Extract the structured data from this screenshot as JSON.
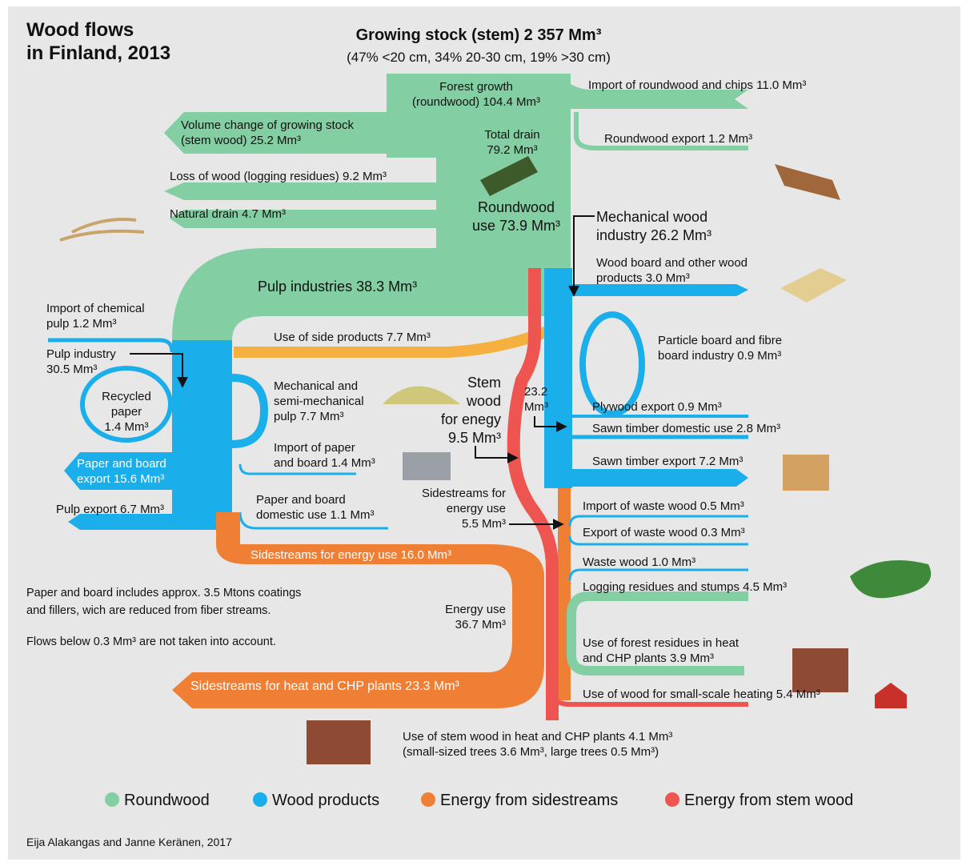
{
  "title": [
    "Wood flows",
    "in Finland, 2013"
  ],
  "header": [
    "Growing stock (stem) 2 357 Mm³",
    "(47% <20 cm, 34% 20-30 cm, 19% >30 cm)"
  ],
  "labels": [
    [
      "Forest growth",
      "(roundwood) 104.4 Mm³"
    ],
    [
      "Total drain",
      "79.2 Mm³"
    ],
    [
      "Roundwood",
      "use 73.9 Mm³"
    ],
    [
      "Volume change of growing stock",
      "(stem wood) 25.2 Mm³"
    ],
    [
      "Loss of wood (logging residues) 9.2 Mm³"
    ],
    [
      "Natural drain 4.7 Mm³"
    ],
    [
      "Import of roundwood and chips 11.0 Mm³"
    ],
    [
      "Roundwood export 1.2 Mm³"
    ],
    [
      "Mechanical wood",
      "industry 26.2 Mm³"
    ],
    [
      "Wood board and other wood",
      "products 3.0 Mm³"
    ],
    [
      "Pulp industries 38.3 Mm³"
    ],
    [
      "Import of chemical",
      "pulp 1.2 Mm³"
    ],
    [
      "Pulp industry",
      "30.5 Mm³"
    ],
    [
      "Recycled",
      "paper",
      "1.4 Mm³"
    ],
    [
      "Paper and board",
      "export 15.6 Mm³"
    ],
    [
      "Pulp export 6.7 Mm³"
    ],
    [
      "Use of side products 7.7 Mm³"
    ],
    [
      "Mechanical and",
      "semi-mechanical",
      "pulp 7.7 Mm³"
    ],
    [
      "Import of paper",
      "and board 1.4 Mm³"
    ],
    [
      "Paper and board",
      "domestic use 1.1 Mm³"
    ],
    [
      "Stem",
      "wood",
      "for enegy",
      "9.5 Mm³"
    ],
    [
      "23.2",
      "Mm³"
    ],
    [
      "Particle board and fibre",
      "board industry 0.9 Mm³"
    ],
    [
      "Plywood export 0.9 Mm³"
    ],
    [
      "Sawn timber domestic use 2.8 Mm³"
    ],
    [
      "Sawn timber export 7.2 Mm³"
    ],
    [
      "Sidestreams for",
      "energy use",
      "5.5 Mm³"
    ],
    [
      "Import of waste wood 0.5 Mm³"
    ],
    [
      "Export of waste wood 0.3 Mm³"
    ],
    [
      "Waste wood 1.0 Mm³"
    ],
    [
      "Logging residues and stumps 4.5 Mm³"
    ],
    [
      "Sidestreams for energy use 16.0 Mm³"
    ],
    [
      "Energy use",
      "36.7 Mm³"
    ],
    [
      "Use of forest residues in heat",
      "and CHP plants 3.9 Mm³"
    ],
    [
      "Sidestreams for heat and CHP plants 23.3 Mm³"
    ],
    [
      "Use of wood for small-scale heating 5.4 Mm³"
    ],
    [
      "Use of stem wood in heat and CHP plants 4.1 Mm³",
      "(small-sized trees 3.6 Mm³, large trees 0.5 Mm³)"
    ]
  ],
  "notes": [
    "Paper and board includes approx. 3.5 Mtons coatings",
    "and fillers, wich are reduced from fiber streams.",
    "Flows below 0.3 Mm³ are not taken into account."
  ],
  "legend": [
    {
      "name": "Roundwood",
      "color": "#83cfa3"
    },
    {
      "name": "Wood products",
      "color": "#1aaeea"
    },
    {
      "name": "Energy from sidestreams",
      "color": "#f07f36"
    },
    {
      "name": "Energy from stem wood",
      "color": "#ee5550"
    }
  ],
  "credit": "Eija Alakangas and Janne Keränen, 2017"
}
